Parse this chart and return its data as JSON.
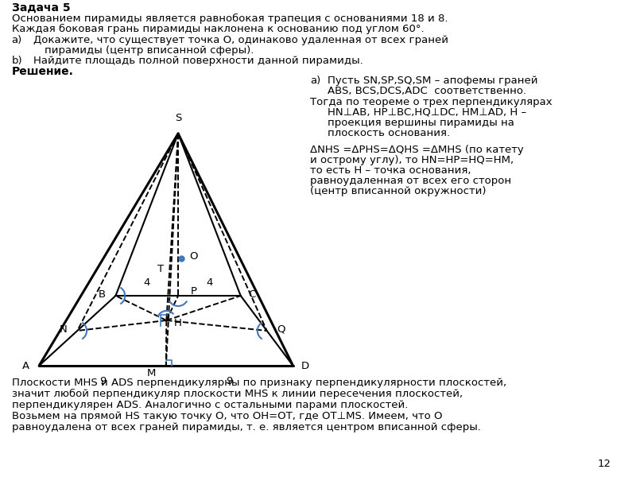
{
  "title_bold": "Задача 5",
  "line1": "Основанием пирамиды является равнобокая трапеция с основаниями 18 и 8.",
  "line2": "Каждая боковая грань пирамиды наклонена к основанию под углом 60°.",
  "item_a_label": "a)",
  "item_a_text1": "Докажите, что существует точка O, одинаково удаленная от всех граней",
  "item_a_text2": "пирамиды (центр вписанной сферы).",
  "item_b_label": "b)",
  "item_b_text": "Найдите площадь полной поверхности данной пирамиды.",
  "solution_bold": "Решение.",
  "right_a_label": "a)",
  "right_a1": "Пусть SN,SP,SQ,SM – апофемы граней",
  "right_a2": "ABS, BCS,DCS,ADC  соответственно.",
  "right_a3": "Тогда по теореме о трех перпендикулярах",
  "right_a4": "HN⊥AB, HP⊥BC,HQ⊥DC, HM⊥AD, H –",
  "right_a5": "проекция вершины пирамиды на",
  "right_a6": "плоскость основания.",
  "right_b1": "ΔNHS =ΔPHS=ΔQHS =ΔMHS (по катету",
  "right_b2": "и острому углу), то HN=HP=HQ=HM,",
  "right_b3": "то есть H – точка основания,",
  "right_b4": "равноудаленная от всех его сторон",
  "right_b5": "(центр вписанной окружности)",
  "bottom1": "Плоскости MHS и ADS перпендикулярны по признаку перпендикулярности плоскостей,",
  "bottom2": "значит любой перпендикуляр плоскости MHS к линии пересечения плоскостей,",
  "bottom3": "перпендикулярен ADS. Аналогично с остальными парами плоскостей.",
  "bottom4": "Возьмем на прямой HS такую точку O, что OH=OT, где OT⊥MS. Имеем, что O",
  "bottom5": "равноудалена от всех граней пирамиды, т. е. является центром вписанной сферы.",
  "page_num": "12",
  "bg_color": "#ffffff",
  "text_color": "#000000",
  "blue_color": "#4477bb"
}
